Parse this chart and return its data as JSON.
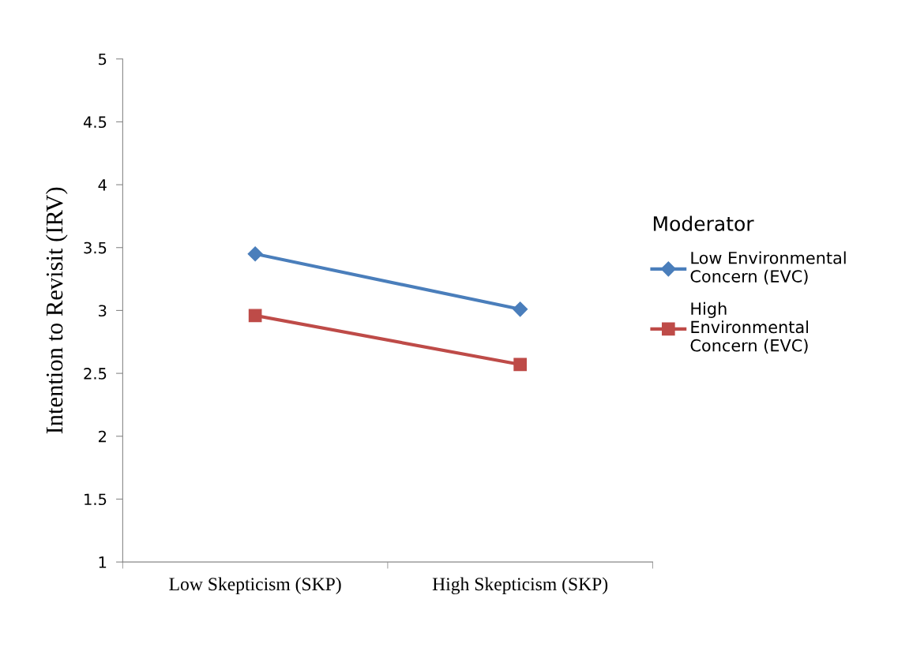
{
  "chart_data": {
    "type": "line",
    "ylabel": "Intention to Revisit (IRV)",
    "legend_title": "Moderator",
    "categories": [
      "Low Skepticism (SKP)",
      "High Skepticism (SKP)"
    ],
    "series": [
      {
        "name": "Low Environmental Concern (EVC)",
        "color": "#4a7ebb",
        "marker": "diamond",
        "values": [
          3.45,
          3.01
        ]
      },
      {
        "name": "High Environmental Concern (EVC)",
        "color": "#be4b48",
        "marker": "square",
        "values": [
          2.96,
          2.57
        ]
      }
    ],
    "ylim": [
      1,
      5
    ],
    "yticks": [
      1,
      1.5,
      2,
      2.5,
      3,
      3.5,
      4,
      4.5,
      5
    ],
    "grid": false,
    "legend": "right",
    "line_style": "solid"
  }
}
